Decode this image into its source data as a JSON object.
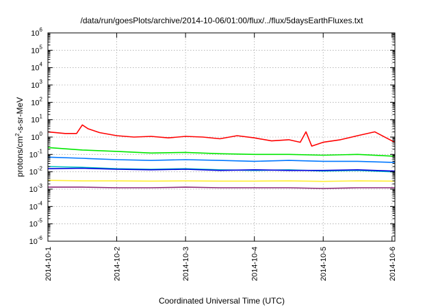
{
  "chart_data": {
    "type": "line",
    "title": "/data/run/goesPlots/archive/2014-10-06/01:00/flux/../flux/5daysEarthFluxes.txt",
    "xlabel": "Coordinated Universal Time (UTC)",
    "ylabel": "protons/cm²-s-sr-MeV",
    "y_scale": "log",
    "ylim": [
      1e-06,
      1000000.0
    ],
    "xlim": [
      "2014-10-01 00:00",
      "2014-10-06 01:00"
    ],
    "x_ticks": [
      "2014-10-1",
      "2014-10-2",
      "2014-10-3",
      "2014-10-4",
      "2014-10-5",
      "2014-10-6"
    ],
    "y_ticks": [
      "1e-6",
      "1e-5",
      "1e-4",
      "1e-3",
      "1e-2",
      "1e-1",
      "1e0",
      "1e1",
      "1e2",
      "1e3",
      "1e4",
      "1e5",
      "1e6"
    ],
    "grid": true,
    "legend": "none",
    "series": [
      {
        "color": "#ff0000",
        "x": [
          "2014-10-01 00:00",
          "2014-10-01 06:00",
          "2014-10-01 10:00",
          "2014-10-01 12:00",
          "2014-10-01 14:00",
          "2014-10-01 18:00",
          "2014-10-02 00:00",
          "2014-10-02 06:00",
          "2014-10-02 12:00",
          "2014-10-02 18:00",
          "2014-10-03 00:00",
          "2014-10-03 06:00",
          "2014-10-03 12:00",
          "2014-10-03 18:00",
          "2014-10-04 00:00",
          "2014-10-04 06:00",
          "2014-10-04 12:00",
          "2014-10-04 16:00",
          "2014-10-04 18:00",
          "2014-10-04 20:00",
          "2014-10-05 00:00",
          "2014-10-05 06:00",
          "2014-10-05 12:00",
          "2014-10-05 18:00",
          "2014-10-06 00:00",
          "2014-10-06 01:00"
        ],
        "values": [
          2.0,
          1.6,
          1.6,
          5.0,
          3.0,
          1.8,
          1.2,
          1.0,
          1.1,
          0.9,
          1.1,
          1.0,
          0.8,
          1.2,
          0.9,
          0.6,
          0.7,
          0.5,
          2.0,
          0.3,
          0.5,
          0.7,
          1.2,
          2.0,
          0.6,
          0.5
        ]
      },
      {
        "color": "#00e800",
        "x": [
          "2014-10-01 00:00",
          "2014-10-01 12:00",
          "2014-10-02 00:00",
          "2014-10-02 12:00",
          "2014-10-03 00:00",
          "2014-10-03 12:00",
          "2014-10-04 00:00",
          "2014-10-04 12:00",
          "2014-10-05 00:00",
          "2014-10-05 12:00",
          "2014-10-06 00:00",
          "2014-10-06 01:00"
        ],
        "values": [
          0.25,
          0.18,
          0.15,
          0.12,
          0.13,
          0.11,
          0.1,
          0.1,
          0.09,
          0.1,
          0.08,
          0.08
        ]
      },
      {
        "color": "#0077ff",
        "x": [
          "2014-10-01 00:00",
          "2014-10-01 12:00",
          "2014-10-02 00:00",
          "2014-10-02 12:00",
          "2014-10-03 00:00",
          "2014-10-03 12:00",
          "2014-10-04 00:00",
          "2014-10-04 12:00",
          "2014-10-05 00:00",
          "2014-10-05 12:00",
          "2014-10-06 00:00",
          "2014-10-06 01:00"
        ],
        "values": [
          0.07,
          0.06,
          0.05,
          0.045,
          0.05,
          0.045,
          0.04,
          0.045,
          0.04,
          0.04,
          0.035,
          0.035
        ]
      },
      {
        "color": "#00c0c0",
        "x": [
          "2014-10-01 00:00",
          "2014-10-01 12:00",
          "2014-10-02 00:00",
          "2014-10-02 12:00",
          "2014-10-03 00:00",
          "2014-10-03 12:00",
          "2014-10-04 00:00",
          "2014-10-04 12:00",
          "2014-10-05 00:00",
          "2014-10-05 12:00",
          "2014-10-06 00:00",
          "2014-10-06 01:00"
        ],
        "values": [
          0.02,
          0.018,
          0.015,
          0.014,
          0.015,
          0.013,
          0.012,
          0.013,
          0.011,
          0.012,
          0.01,
          0.01
        ]
      },
      {
        "color": "#0000dd",
        "x": [
          "2014-10-01 00:00",
          "2014-10-01 12:00",
          "2014-10-02 00:00",
          "2014-10-02 12:00",
          "2014-10-03 00:00",
          "2014-10-03 12:00",
          "2014-10-04 00:00",
          "2014-10-04 12:00",
          "2014-10-05 00:00",
          "2014-10-05 12:00",
          "2014-10-06 00:00",
          "2014-10-06 01:00"
        ],
        "values": [
          0.015,
          0.016,
          0.014,
          0.013,
          0.014,
          0.012,
          0.013,
          0.012,
          0.012,
          0.013,
          0.011,
          0.011
        ]
      },
      {
        "color": "#ffee33",
        "x": [
          "2014-10-01 00:00",
          "2014-10-01 12:00",
          "2014-10-02 00:00",
          "2014-10-02 12:00",
          "2014-10-03 00:00",
          "2014-10-03 12:00",
          "2014-10-04 00:00",
          "2014-10-04 12:00",
          "2014-10-05 00:00",
          "2014-10-05 12:00",
          "2014-10-06 00:00",
          "2014-10-06 01:00"
        ],
        "values": [
          0.0032,
          0.003,
          0.003,
          0.0029,
          0.003,
          0.0029,
          0.0029,
          0.003,
          0.0028,
          0.003,
          0.0029,
          0.0029
        ]
      },
      {
        "color": "#8e2a78",
        "x": [
          "2014-10-01 00:00",
          "2014-10-01 12:00",
          "2014-10-02 00:00",
          "2014-10-02 12:00",
          "2014-10-03 00:00",
          "2014-10-03 12:00",
          "2014-10-04 00:00",
          "2014-10-04 12:00",
          "2014-10-05 00:00",
          "2014-10-05 12:00",
          "2014-10-06 00:00",
          "2014-10-06 01:00"
        ],
        "values": [
          0.0013,
          0.0013,
          0.0012,
          0.0012,
          0.0013,
          0.0012,
          0.0012,
          0.0012,
          0.0011,
          0.0012,
          0.0012,
          0.0012
        ]
      }
    ]
  }
}
